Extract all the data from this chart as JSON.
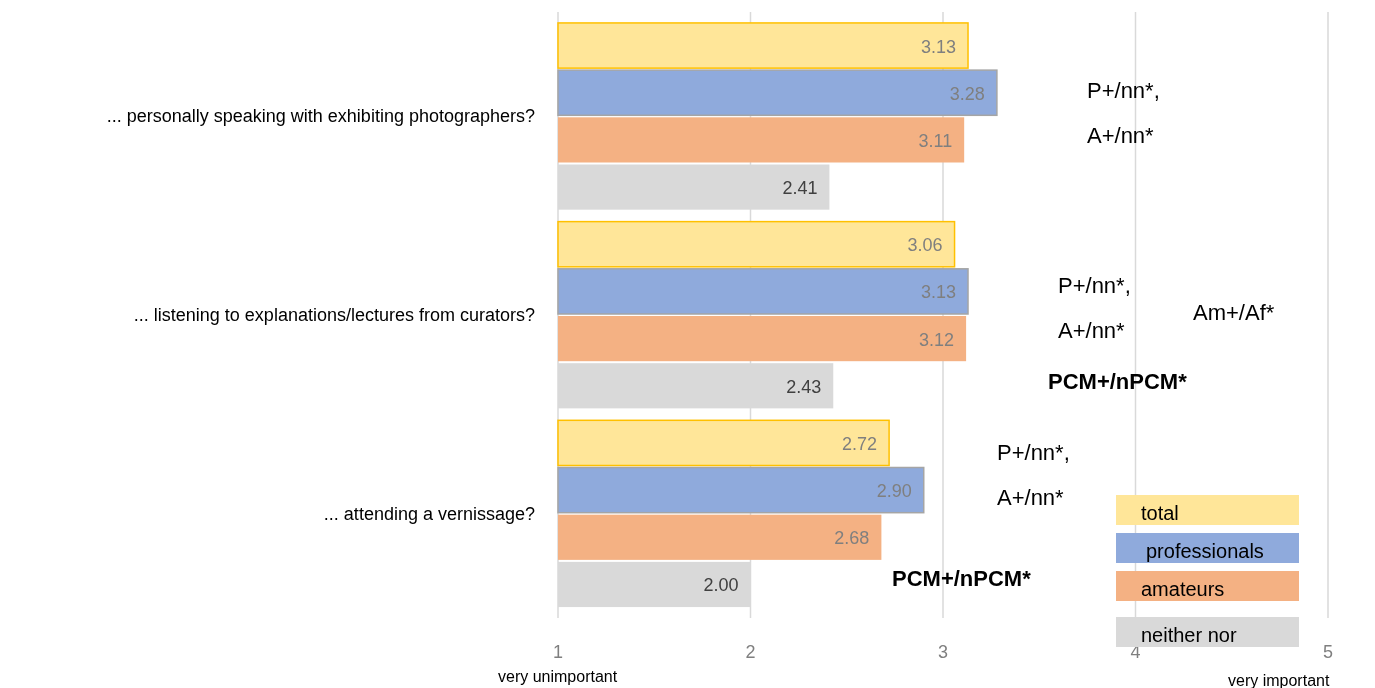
{
  "chart_data": {
    "type": "bar",
    "orientation": "horizontal",
    "categories": [
      "... personally speaking with exhibiting photographers?",
      "... listening to explanations/lectures from curators?",
      "... attending a vernissage?"
    ],
    "series": [
      {
        "name": "total",
        "color": "#ffe699",
        "values": [
          3.13,
          3.06,
          2.72
        ]
      },
      {
        "name": "professionals",
        "color": "#8faadc",
        "values": [
          3.28,
          3.13,
          2.9
        ]
      },
      {
        "name": "amateurs",
        "color": "#f4b183",
        "values": [
          3.11,
          3.12,
          2.68
        ]
      },
      {
        "name": "neither nor",
        "color": "#d9d9d9",
        "values": [
          2.41,
          2.43,
          2.0
        ]
      }
    ],
    "xlim": [
      1,
      5
    ],
    "xticks": [
      1,
      2,
      3,
      4,
      5
    ],
    "grid": "x",
    "legend": "bottom right",
    "value_labels": [
      [
        "3.13",
        "3.06",
        "2.72"
      ],
      [
        "3.28",
        "3.13",
        "2.90"
      ],
      [
        "3.11",
        "3.12",
        "2.68"
      ],
      [
        "2.41",
        "2.43",
        "2.00"
      ]
    ],
    "annotations": [
      "P+/nn*,",
      "A+/nn*",
      "P+/nn*,",
      "A+/nn*",
      "Am+/Af*",
      "PCM+/nPCM*",
      "P+/nn*,",
      "A+/nn*",
      "PCM+/nPCM*",
      "very unimportant",
      "very important"
    ]
  }
}
